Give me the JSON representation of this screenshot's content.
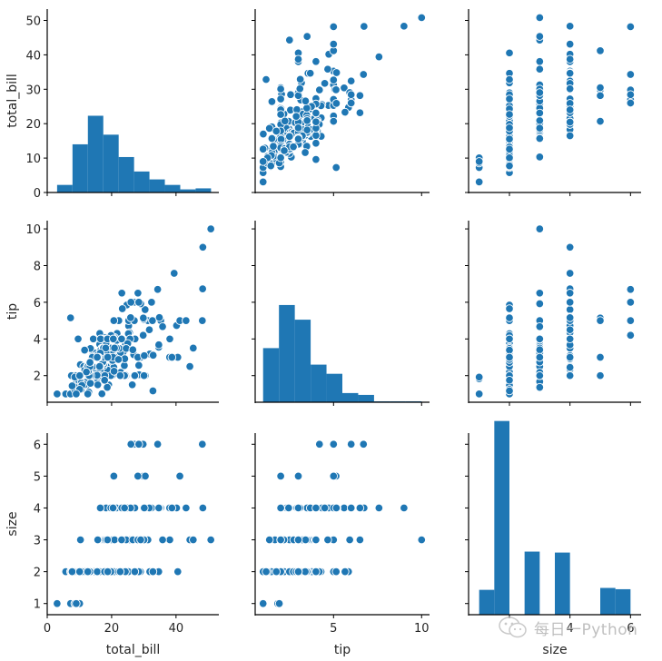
{
  "chart_data": {
    "type": "scatter",
    "title": "",
    "variables": [
      "total_bill",
      "tip",
      "size"
    ],
    "axis_labels": {
      "total_bill": "total_bill",
      "tip": "tip",
      "size": "size"
    },
    "axis_ranges": {
      "total_bill": [
        0.0,
        53.3
      ],
      "tip": [
        0.55,
        10.45
      ],
      "size": [
        0.65,
        6.35
      ]
    },
    "x_ticks": {
      "total_bill": [
        0,
        20,
        40
      ],
      "tip": [
        5,
        10
      ],
      "size": [
        2,
        4,
        6
      ]
    },
    "x_tick_labels": {
      "total_bill": [
        "0",
        "20",
        "40"
      ],
      "tip": [
        "5",
        "10"
      ],
      "size": [
        "",
        "4",
        "6"
      ]
    },
    "y_ticks": {
      "total_bill": [
        0,
        10,
        20,
        30,
        40,
        50
      ],
      "tip": [
        2,
        4,
        6,
        8,
        10
      ],
      "size": [
        1,
        2,
        3,
        4,
        5,
        6
      ]
    },
    "y_tick_labels": {
      "total_bill": [
        "0",
        "10",
        "20",
        "30",
        "40",
        "50"
      ],
      "tip": [
        "2",
        "4",
        "6",
        "8",
        "10"
      ],
      "size": [
        "1",
        "2",
        "3",
        "4",
        "5",
        "6"
      ]
    },
    "grid": false,
    "legend": "none",
    "color": "#1f77b4",
    "diagonal_histograms": {
      "total_bill": {
        "bin_edges": [
          3.07,
          7.85,
          12.63,
          17.41,
          22.19,
          26.97,
          31.75,
          36.53,
          41.31,
          46.09,
          50.87
        ],
        "heights": [
          2.2,
          14.0,
          22.3,
          16.8,
          10.3,
          6.1,
          3.8,
          2.2,
          0.9,
          1.2
        ]
      },
      "tip": {
        "bin_edges": [
          1.0,
          1.9,
          2.8,
          3.7,
          4.6,
          5.5,
          6.4,
          7.3,
          8.2,
          9.1,
          10.0
        ],
        "heights": [
          2.95,
          5.3,
          4.5,
          2.05,
          1.55,
          0.5,
          0.4,
          0.05,
          0.05,
          0.05
        ]
      },
      "size": {
        "bin_edges": [
          1.0,
          1.5,
          2.0,
          2.5,
          3.0,
          3.5,
          4.0,
          4.5,
          5.0,
          5.5,
          6.0
        ],
        "heights": [
          0.78,
          6.08,
          0.0,
          1.98,
          0.0,
          1.95,
          0.0,
          0.0,
          0.84,
          0.8
        ]
      }
    },
    "points": [
      [
        16.99,
        1.01,
        2
      ],
      [
        10.34,
        1.66,
        3
      ],
      [
        21.01,
        3.5,
        3
      ],
      [
        23.68,
        3.31,
        2
      ],
      [
        24.59,
        3.61,
        4
      ],
      [
        25.29,
        4.71,
        4
      ],
      [
        8.77,
        2.0,
        2
      ],
      [
        26.88,
        3.12,
        4
      ],
      [
        15.04,
        1.96,
        2
      ],
      [
        14.78,
        3.23,
        2
      ],
      [
        10.27,
        1.71,
        2
      ],
      [
        35.26,
        5.0,
        4
      ],
      [
        15.42,
        1.57,
        2
      ],
      [
        18.43,
        3.0,
        4
      ],
      [
        14.83,
        3.02,
        2
      ],
      [
        21.58,
        3.92,
        2
      ],
      [
        10.33,
        1.67,
        3
      ],
      [
        16.29,
        3.71,
        3
      ],
      [
        16.97,
        3.5,
        3
      ],
      [
        20.65,
        3.35,
        3
      ],
      [
        17.92,
        4.08,
        2
      ],
      [
        20.29,
        2.75,
        2
      ],
      [
        15.77,
        2.23,
        2
      ],
      [
        39.42,
        7.58,
        4
      ],
      [
        19.82,
        3.18,
        2
      ],
      [
        17.81,
        2.34,
        4
      ],
      [
        13.37,
        2.0,
        2
      ],
      [
        12.69,
        2.0,
        2
      ],
      [
        21.7,
        4.3,
        2
      ],
      [
        19.65,
        3.0,
        2
      ],
      [
        9.55,
        1.45,
        2
      ],
      [
        18.35,
        2.5,
        4
      ],
      [
        15.06,
        3.0,
        2
      ],
      [
        20.69,
        2.45,
        4
      ],
      [
        17.78,
        3.27,
        2
      ],
      [
        24.06,
        3.6,
        3
      ],
      [
        16.31,
        2.0,
        3
      ],
      [
        16.93,
        3.07,
        3
      ],
      [
        18.69,
        2.31,
        3
      ],
      [
        31.27,
        5.0,
        3
      ],
      [
        16.04,
        2.24,
        3
      ],
      [
        17.46,
        2.54,
        2
      ],
      [
        13.94,
        3.06,
        2
      ],
      [
        9.68,
        1.32,
        2
      ],
      [
        30.4,
        5.6,
        4
      ],
      [
        18.29,
        3.0,
        2
      ],
      [
        22.23,
        5.0,
        2
      ],
      [
        32.4,
        6.0,
        4
      ],
      [
        28.55,
        2.05,
        3
      ],
      [
        18.04,
        3.0,
        2
      ],
      [
        12.54,
        2.5,
        2
      ],
      [
        10.29,
        2.6,
        2
      ],
      [
        34.81,
        5.2,
        4
      ],
      [
        9.94,
        1.56,
        2
      ],
      [
        25.56,
        4.34,
        4
      ],
      [
        19.49,
        3.51,
        2
      ],
      [
        38.01,
        3.0,
        4
      ],
      [
        26.41,
        1.5,
        2
      ],
      [
        11.24,
        1.76,
        2
      ],
      [
        48.27,
        6.73,
        4
      ],
      [
        20.29,
        3.21,
        2
      ],
      [
        13.81,
        2.0,
        2
      ],
      [
        11.02,
        1.98,
        2
      ],
      [
        18.29,
        3.76,
        4
      ],
      [
        17.59,
        2.64,
        3
      ],
      [
        20.08,
        3.15,
        3
      ],
      [
        16.45,
        2.47,
        2
      ],
      [
        3.07,
        1.0,
        1
      ],
      [
        20.23,
        2.01,
        2
      ],
      [
        15.01,
        2.09,
        2
      ],
      [
        12.02,
        1.97,
        2
      ],
      [
        17.07,
        3.0,
        3
      ],
      [
        26.86,
        3.14,
        2
      ],
      [
        25.28,
        5.0,
        2
      ],
      [
        14.73,
        2.2,
        2
      ],
      [
        10.51,
        1.25,
        2
      ],
      [
        17.92,
        3.08,
        2
      ],
      [
        27.2,
        4.0,
        4
      ],
      [
        22.76,
        3.0,
        2
      ],
      [
        17.29,
        2.71,
        2
      ],
      [
        19.44,
        3.0,
        2
      ],
      [
        16.66,
        3.4,
        2
      ],
      [
        10.07,
        1.83,
        1
      ],
      [
        32.68,
        5.0,
        2
      ],
      [
        15.98,
        2.03,
        2
      ],
      [
        34.83,
        5.17,
        4
      ],
      [
        13.03,
        2.0,
        2
      ],
      [
        18.28,
        4.0,
        2
      ],
      [
        24.71,
        5.85,
        2
      ],
      [
        21.16,
        3.0,
        2
      ],
      [
        28.97,
        3.0,
        2
      ],
      [
        22.49,
        3.5,
        2
      ],
      [
        5.75,
        1.0,
        2
      ],
      [
        16.32,
        4.3,
        2
      ],
      [
        22.75,
        3.25,
        2
      ],
      [
        40.17,
        4.73,
        4
      ],
      [
        27.28,
        4.0,
        2
      ],
      [
        12.03,
        1.5,
        2
      ],
      [
        21.01,
        3.0,
        2
      ],
      [
        12.46,
        1.5,
        2
      ],
      [
        11.35,
        2.5,
        2
      ],
      [
        15.38,
        3.0,
        2
      ],
      [
        44.3,
        2.5,
        3
      ],
      [
        22.42,
        3.48,
        2
      ],
      [
        20.92,
        4.08,
        2
      ],
      [
        15.36,
        1.64,
        2
      ],
      [
        20.49,
        4.06,
        2
      ],
      [
        25.21,
        4.29,
        2
      ],
      [
        18.24,
        3.76,
        2
      ],
      [
        14.31,
        4.0,
        2
      ],
      [
        14.0,
        3.0,
        2
      ],
      [
        7.25,
        1.0,
        1
      ],
      [
        38.07,
        4.0,
        3
      ],
      [
        23.95,
        2.55,
        2
      ],
      [
        25.71,
        4.0,
        3
      ],
      [
        17.31,
        3.5,
        2
      ],
      [
        29.93,
        5.07,
        4
      ],
      [
        10.65,
        1.5,
        2
      ],
      [
        12.43,
        1.8,
        2
      ],
      [
        24.08,
        2.92,
        4
      ],
      [
        11.69,
        2.31,
        2
      ],
      [
        13.42,
        1.68,
        2
      ],
      [
        14.26,
        2.5,
        2
      ],
      [
        15.95,
        2.0,
        2
      ],
      [
        12.48,
        2.52,
        2
      ],
      [
        29.8,
        4.2,
        6
      ],
      [
        8.52,
        1.48,
        2
      ],
      [
        14.52,
        2.0,
        2
      ],
      [
        11.38,
        2.0,
        2
      ],
      [
        22.82,
        2.18,
        3
      ],
      [
        19.08,
        1.5,
        2
      ],
      [
        20.27,
        2.83,
        2
      ],
      [
        11.17,
        1.5,
        2
      ],
      [
        12.26,
        2.0,
        2
      ],
      [
        18.26,
        3.25,
        2
      ],
      [
        8.51,
        1.25,
        2
      ],
      [
        10.33,
        2.0,
        2
      ],
      [
        14.15,
        2.0,
        2
      ],
      [
        16.0,
        2.0,
        2
      ],
      [
        13.16,
        2.75,
        2
      ],
      [
        17.47,
        3.5,
        2
      ],
      [
        34.3,
        6.7,
        6
      ],
      [
        41.19,
        5.0,
        5
      ],
      [
        27.05,
        5.0,
        6
      ],
      [
        16.43,
        2.3,
        2
      ],
      [
        8.35,
        1.5,
        2
      ],
      [
        18.64,
        1.36,
        3
      ],
      [
        11.87,
        1.63,
        2
      ],
      [
        9.78,
        1.73,
        2
      ],
      [
        7.51,
        2.0,
        2
      ],
      [
        14.07,
        2.5,
        2
      ],
      [
        13.13,
        2.0,
        2
      ],
      [
        17.26,
        2.74,
        3
      ],
      [
        24.55,
        2.0,
        4
      ],
      [
        19.77,
        2.0,
        4
      ],
      [
        29.85,
        5.14,
        5
      ],
      [
        48.17,
        5.0,
        6
      ],
      [
        25.0,
        3.75,
        4
      ],
      [
        13.39,
        2.61,
        2
      ],
      [
        16.49,
        2.0,
        4
      ],
      [
        21.5,
        3.5,
        4
      ],
      [
        12.66,
        2.5,
        2
      ],
      [
        16.21,
        2.0,
        3
      ],
      [
        13.81,
        2.0,
        2
      ],
      [
        17.51,
        3.0,
        2
      ],
      [
        24.52,
        3.48,
        3
      ],
      [
        20.76,
        2.24,
        2
      ],
      [
        31.71,
        4.5,
        4
      ],
      [
        10.59,
        1.61,
        2
      ],
      [
        10.63,
        2.0,
        2
      ],
      [
        50.81,
        10.0,
        3
      ],
      [
        15.81,
        3.16,
        2
      ],
      [
        7.25,
        5.15,
        2
      ],
      [
        31.85,
        3.18,
        2
      ],
      [
        16.82,
        4.0,
        2
      ],
      [
        32.9,
        3.11,
        2
      ],
      [
        17.89,
        2.0,
        2
      ],
      [
        14.48,
        2.0,
        2
      ],
      [
        9.6,
        4.0,
        2
      ],
      [
        34.63,
        3.55,
        2
      ],
      [
        34.65,
        3.68,
        4
      ],
      [
        23.33,
        5.65,
        2
      ],
      [
        45.35,
        3.5,
        3
      ],
      [
        23.17,
        6.5,
        4
      ],
      [
        40.55,
        3.0,
        2
      ],
      [
        20.69,
        5.0,
        5
      ],
      [
        20.9,
        3.5,
        3
      ],
      [
        30.46,
        2.0,
        5
      ],
      [
        18.15,
        3.5,
        3
      ],
      [
        23.1,
        4.0,
        3
      ],
      [
        15.69,
        1.5,
        2
      ],
      [
        19.81,
        4.19,
        2
      ],
      [
        28.44,
        2.56,
        2
      ],
      [
        15.48,
        2.02,
        2
      ],
      [
        16.58,
        4.0,
        2
      ],
      [
        7.56,
        1.44,
        2
      ],
      [
        10.34,
        2.0,
        2
      ],
      [
        43.11,
        5.0,
        4
      ],
      [
        13.0,
        2.0,
        2
      ],
      [
        13.51,
        2.0,
        2
      ],
      [
        18.71,
        4.0,
        3
      ],
      [
        12.74,
        2.01,
        2
      ],
      [
        13.0,
        2.0,
        2
      ],
      [
        16.4,
        2.5,
        2
      ],
      [
        20.53,
        4.0,
        4
      ],
      [
        16.47,
        3.23,
        3
      ],
      [
        26.59,
        3.41,
        3
      ],
      [
        38.73,
        3.0,
        4
      ],
      [
        24.27,
        2.03,
        2
      ],
      [
        12.76,
        2.23,
        2
      ],
      [
        30.06,
        2.0,
        3
      ],
      [
        25.89,
        5.16,
        4
      ],
      [
        48.33,
        9.0,
        4
      ],
      [
        13.27,
        2.5,
        2
      ],
      [
        28.17,
        6.5,
        3
      ],
      [
        12.9,
        1.1,
        2
      ],
      [
        28.15,
        3.0,
        5
      ],
      [
        11.59,
        1.5,
        2
      ],
      [
        7.74,
        1.44,
        2
      ],
      [
        30.14,
        3.09,
        4
      ],
      [
        12.16,
        2.2,
        2
      ],
      [
        13.42,
        3.48,
        2
      ],
      [
        8.58,
        1.92,
        1
      ],
      [
        15.98,
        3.0,
        3
      ],
      [
        13.42,
        1.58,
        2
      ],
      [
        16.27,
        2.5,
        2
      ],
      [
        10.09,
        2.0,
        2
      ],
      [
        20.45,
        3.0,
        4
      ],
      [
        13.28,
        2.72,
        2
      ],
      [
        22.12,
        2.88,
        2
      ],
      [
        24.01,
        2.0,
        4
      ],
      [
        15.69,
        3.0,
        3
      ],
      [
        11.61,
        3.39,
        2
      ],
      [
        10.77,
        1.47,
        2
      ],
      [
        15.53,
        3.0,
        2
      ],
      [
        10.07,
        1.25,
        2
      ],
      [
        12.6,
        1.0,
        2
      ],
      [
        32.83,
        1.17,
        2
      ],
      [
        35.83,
        4.67,
        3
      ],
      [
        29.03,
        5.92,
        3
      ],
      [
        27.18,
        2.0,
        2
      ],
      [
        22.67,
        2.0,
        2
      ],
      [
        17.82,
        1.75,
        2
      ],
      [
        18.78,
        3.0,
        2
      ],
      [
        27.0,
        6.0,
        6
      ],
      [
        26.0,
        6.0,
        6
      ],
      [
        9.0,
        1.0,
        1
      ],
      [
        28.44,
        6.0,
        6
      ]
    ]
  },
  "watermark": {
    "text": "每日一Python",
    "icon": "wechat-icon"
  }
}
